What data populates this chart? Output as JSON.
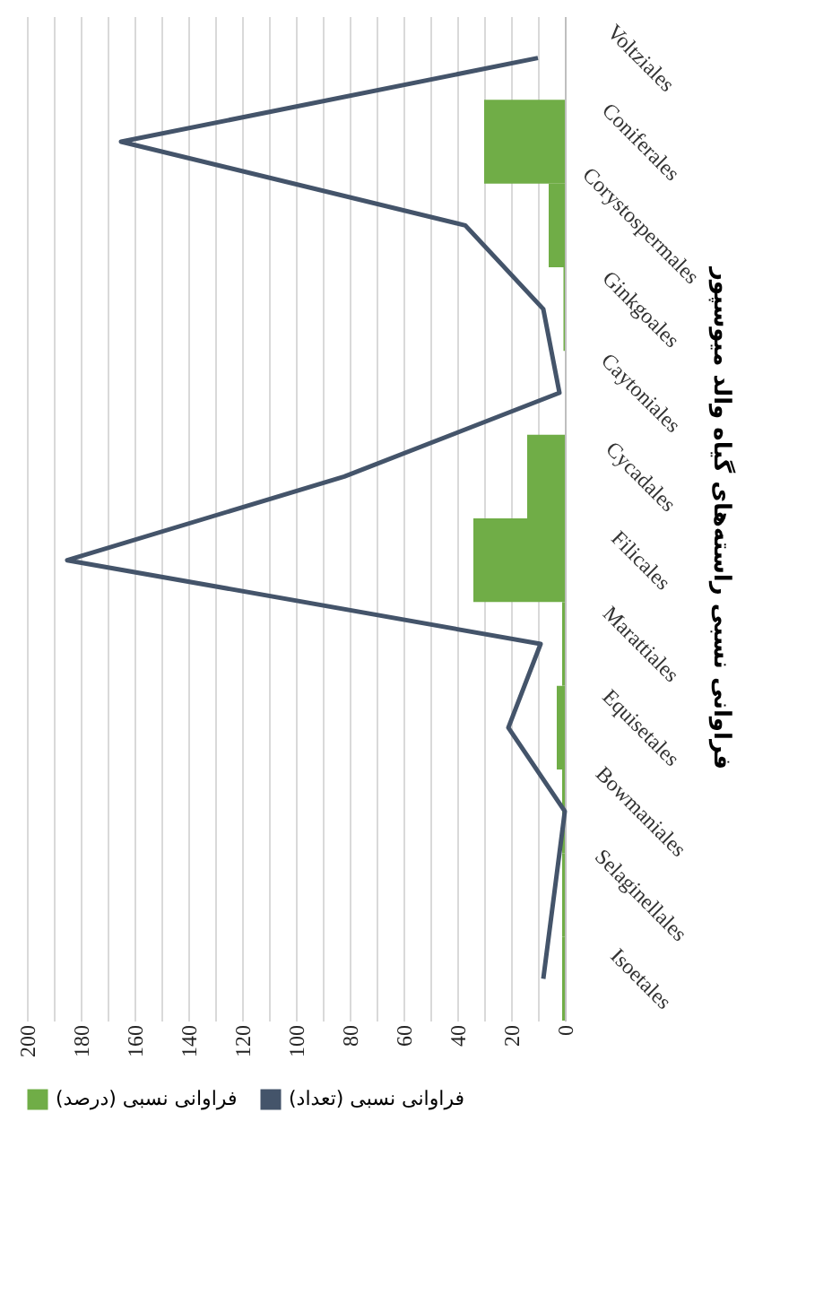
{
  "chart_data": {
    "type": "bar",
    "orientation": "horizontal",
    "title": "فراوانی نسبی راسته‌های گیاه والد میوسپور",
    "categories": [
      "Voltziales",
      "Coniferales",
      "Corystospermales",
      "Ginkgoales",
      "Caytoniales",
      "Cycadales",
      "Filicales",
      "Marattiales",
      "Equisetales",
      "Bowmaniales",
      "Selaginellales",
      "Isoetales"
    ],
    "series": [
      {
        "name": "فراوانی نسبی (درصد)",
        "color": "#70ad47",
        "values": [
          0,
          30,
          6,
          0.5,
          0,
          14,
          34,
          1,
          3,
          1,
          1,
          1
        ]
      },
      {
        "name": "فراوانی نسبی (تعداد)",
        "type": "line",
        "color": "#44546a",
        "values": [
          10,
          165,
          37,
          8,
          2,
          82,
          185,
          9,
          21,
          0,
          4,
          8
        ]
      }
    ],
    "xlim": [
      200,
      0
    ],
    "xticks": [
      200,
      {
        "value": 190,
        "label": null
      },
      180,
      {
        "value": 170,
        "label": null
      },
      160,
      {
        "value": 150,
        "label": null
      },
      140,
      {
        "value": 130,
        "label": null
      },
      120,
      {
        "value": 110,
        "label": null
      },
      100,
      {
        "value": 90,
        "label": null
      },
      80,
      {
        "value": 70,
        "label": null
      },
      60,
      {
        "value": 50,
        "label": null
      },
      40,
      {
        "value": 30,
        "label": null
      },
      20,
      {
        "value": 10,
        "label": null
      },
      0
    ],
    "grid": "x",
    "legend": "bottom",
    "marker": "none",
    "line_style": "solid"
  }
}
